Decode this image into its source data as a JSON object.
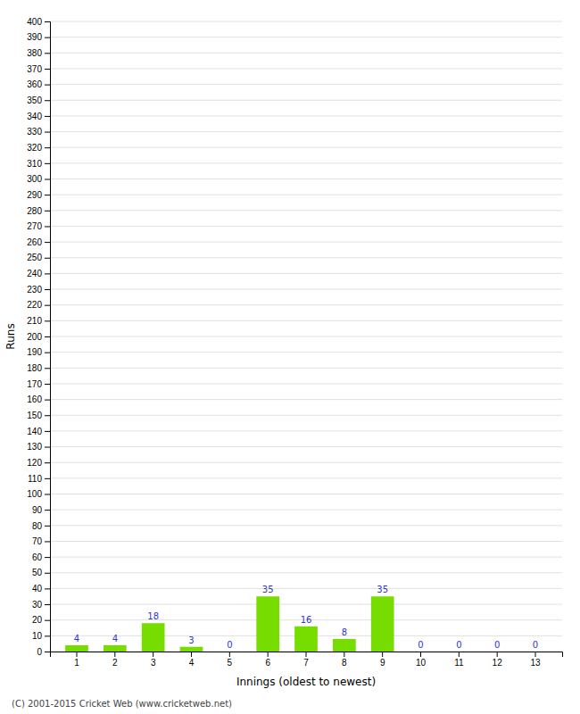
{
  "chart_data": {
    "type": "bar",
    "categories": [
      "1",
      "2",
      "3",
      "4",
      "5",
      "6",
      "7",
      "8",
      "9",
      "10",
      "11",
      "12",
      "13"
    ],
    "values": [
      4,
      4,
      18,
      3,
      0,
      35,
      16,
      8,
      35,
      0,
      0,
      0,
      0
    ],
    "color": "#77dd00",
    "xlabel": "Innings (oldest to newest)",
    "ylabel": "Runs",
    "ylim": [
      0,
      400
    ],
    "yticks": [
      0,
      10,
      20,
      30,
      40,
      50,
      60,
      70,
      80,
      90,
      100,
      110,
      120,
      130,
      140,
      150,
      160,
      170,
      180,
      190,
      200,
      210,
      220,
      230,
      240,
      250,
      260,
      270,
      280,
      290,
      300,
      310,
      320,
      330,
      340,
      350,
      360,
      370,
      380,
      390,
      400
    ],
    "grid": true,
    "data_labels": true,
    "annotations": [
      "(C) 2001-2015 Cricket Web (www.cricketweb.net)"
    ]
  }
}
